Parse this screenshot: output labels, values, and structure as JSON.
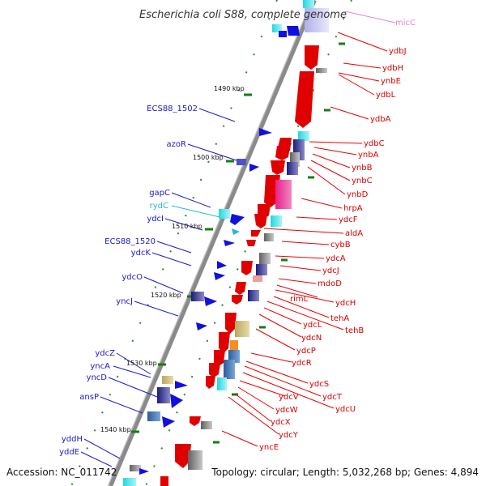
{
  "header": {
    "title": "Escherichia coli S88, complete genome"
  },
  "footer": {
    "accession": "Accession: NC_011742",
    "summary": "Topology: circular; Length: 5,032,268 bp; Genes: 4,894"
  },
  "colors": {
    "backbone": "#8a8a8a",
    "forward_label": "#1a1acc",
    "reverse_label": "#d80000",
    "rna_label": "#22b8d8",
    "pink_label": "#e088c8",
    "tick": "#1a7a1a",
    "forward_arrow": "#1010e0",
    "reverse_arrow": "#e80000"
  },
  "kbp_marks": [
    "1490 kbp",
    "1500 kbp",
    "1510 kbp",
    "1520 kbp",
    "1530 kbp",
    "1540 kbp"
  ],
  "reverse_labels": [
    "micC",
    "ydbJ",
    "ydbH",
    "ynbE",
    "ydbL",
    "ydbA",
    "ydbC",
    "ynbA",
    "ynbB",
    "ynbC",
    "ynbD",
    "hrpA",
    "ydcF",
    "aldA",
    "cybB",
    "ydcA",
    "ydcJ",
    "mdoD",
    "rimL",
    "ydcH",
    "tehA",
    "tehB",
    "ydcL",
    "ydcN",
    "ydcP",
    "ydcR",
    "ydcS",
    "ydcT",
    "ydcU",
    "ydcV",
    "ydcW",
    "ydcX",
    "ydcY",
    "yncE"
  ],
  "forward_labels": [
    "ECS88_1502",
    "azoR",
    "gapC",
    "rydC",
    "ydcI",
    "ECS88_1520",
    "ydcK",
    "ydcO",
    "yncJ",
    "ydcZ",
    "yncA",
    "yncD",
    "ansP",
    "yddH",
    "yddE"
  ]
}
